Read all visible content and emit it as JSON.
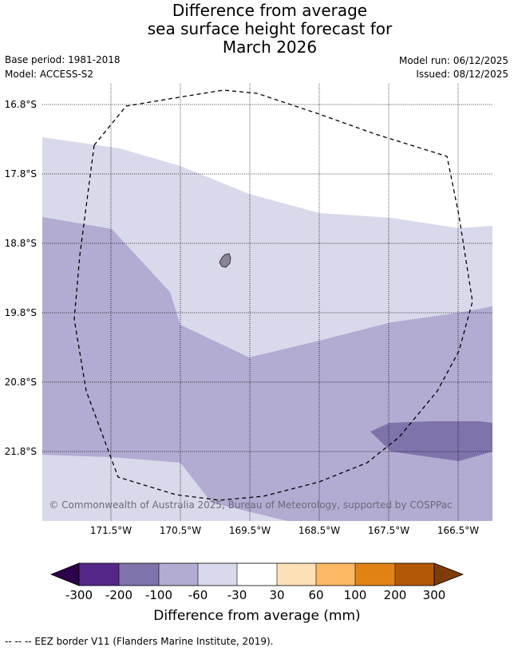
{
  "title": {
    "line1": "Difference from average",
    "line2": "sea surface height forecast for",
    "line3": "March 2026"
  },
  "meta": {
    "base_period": "Base period: 1981-2018",
    "model": "Model: ACCESS-S2",
    "model_run": "Model run: 06/12/2025",
    "issued": "Issued: 08/12/2025"
  },
  "map": {
    "lat_labels": [
      "16.8°S",
      "17.8°S",
      "18.8°S",
      "19.8°S",
      "20.8°S",
      "21.8°S"
    ],
    "lon_labels": [
      "171.5°W",
      "170.5°W",
      "169.5°W",
      "168.5°W",
      "167.5°W",
      "166.5°W"
    ],
    "copyright": "© Commonwealth of Australia 2025, Bureau of Meteorology, supported by COSPPac",
    "colors": {
      "band_-200_-100": "#8073ac",
      "band_-100_-60": "#b2abd2",
      "band_-60_-30": "#d8daeb",
      "band_-30_30": "#ffffff",
      "island": "#8a8496"
    }
  },
  "colorbar": {
    "title": "Difference from average (mm)",
    "tick_labels": [
      "-300",
      "-200",
      "-100",
      "-60",
      "-30",
      "30",
      "60",
      "100",
      "200",
      "300"
    ],
    "colors": [
      "#542788",
      "#8073ac",
      "#b2abd2",
      "#d8daeb",
      "#ffffff",
      "#fee0b6",
      "#fdb863",
      "#e08214",
      "#b35806"
    ],
    "under_color": "#2d004b",
    "over_color": "#7f3b08"
  },
  "footnote": "--  --  -- EEZ border V11 (Flanders Marine Institute, 2019)."
}
